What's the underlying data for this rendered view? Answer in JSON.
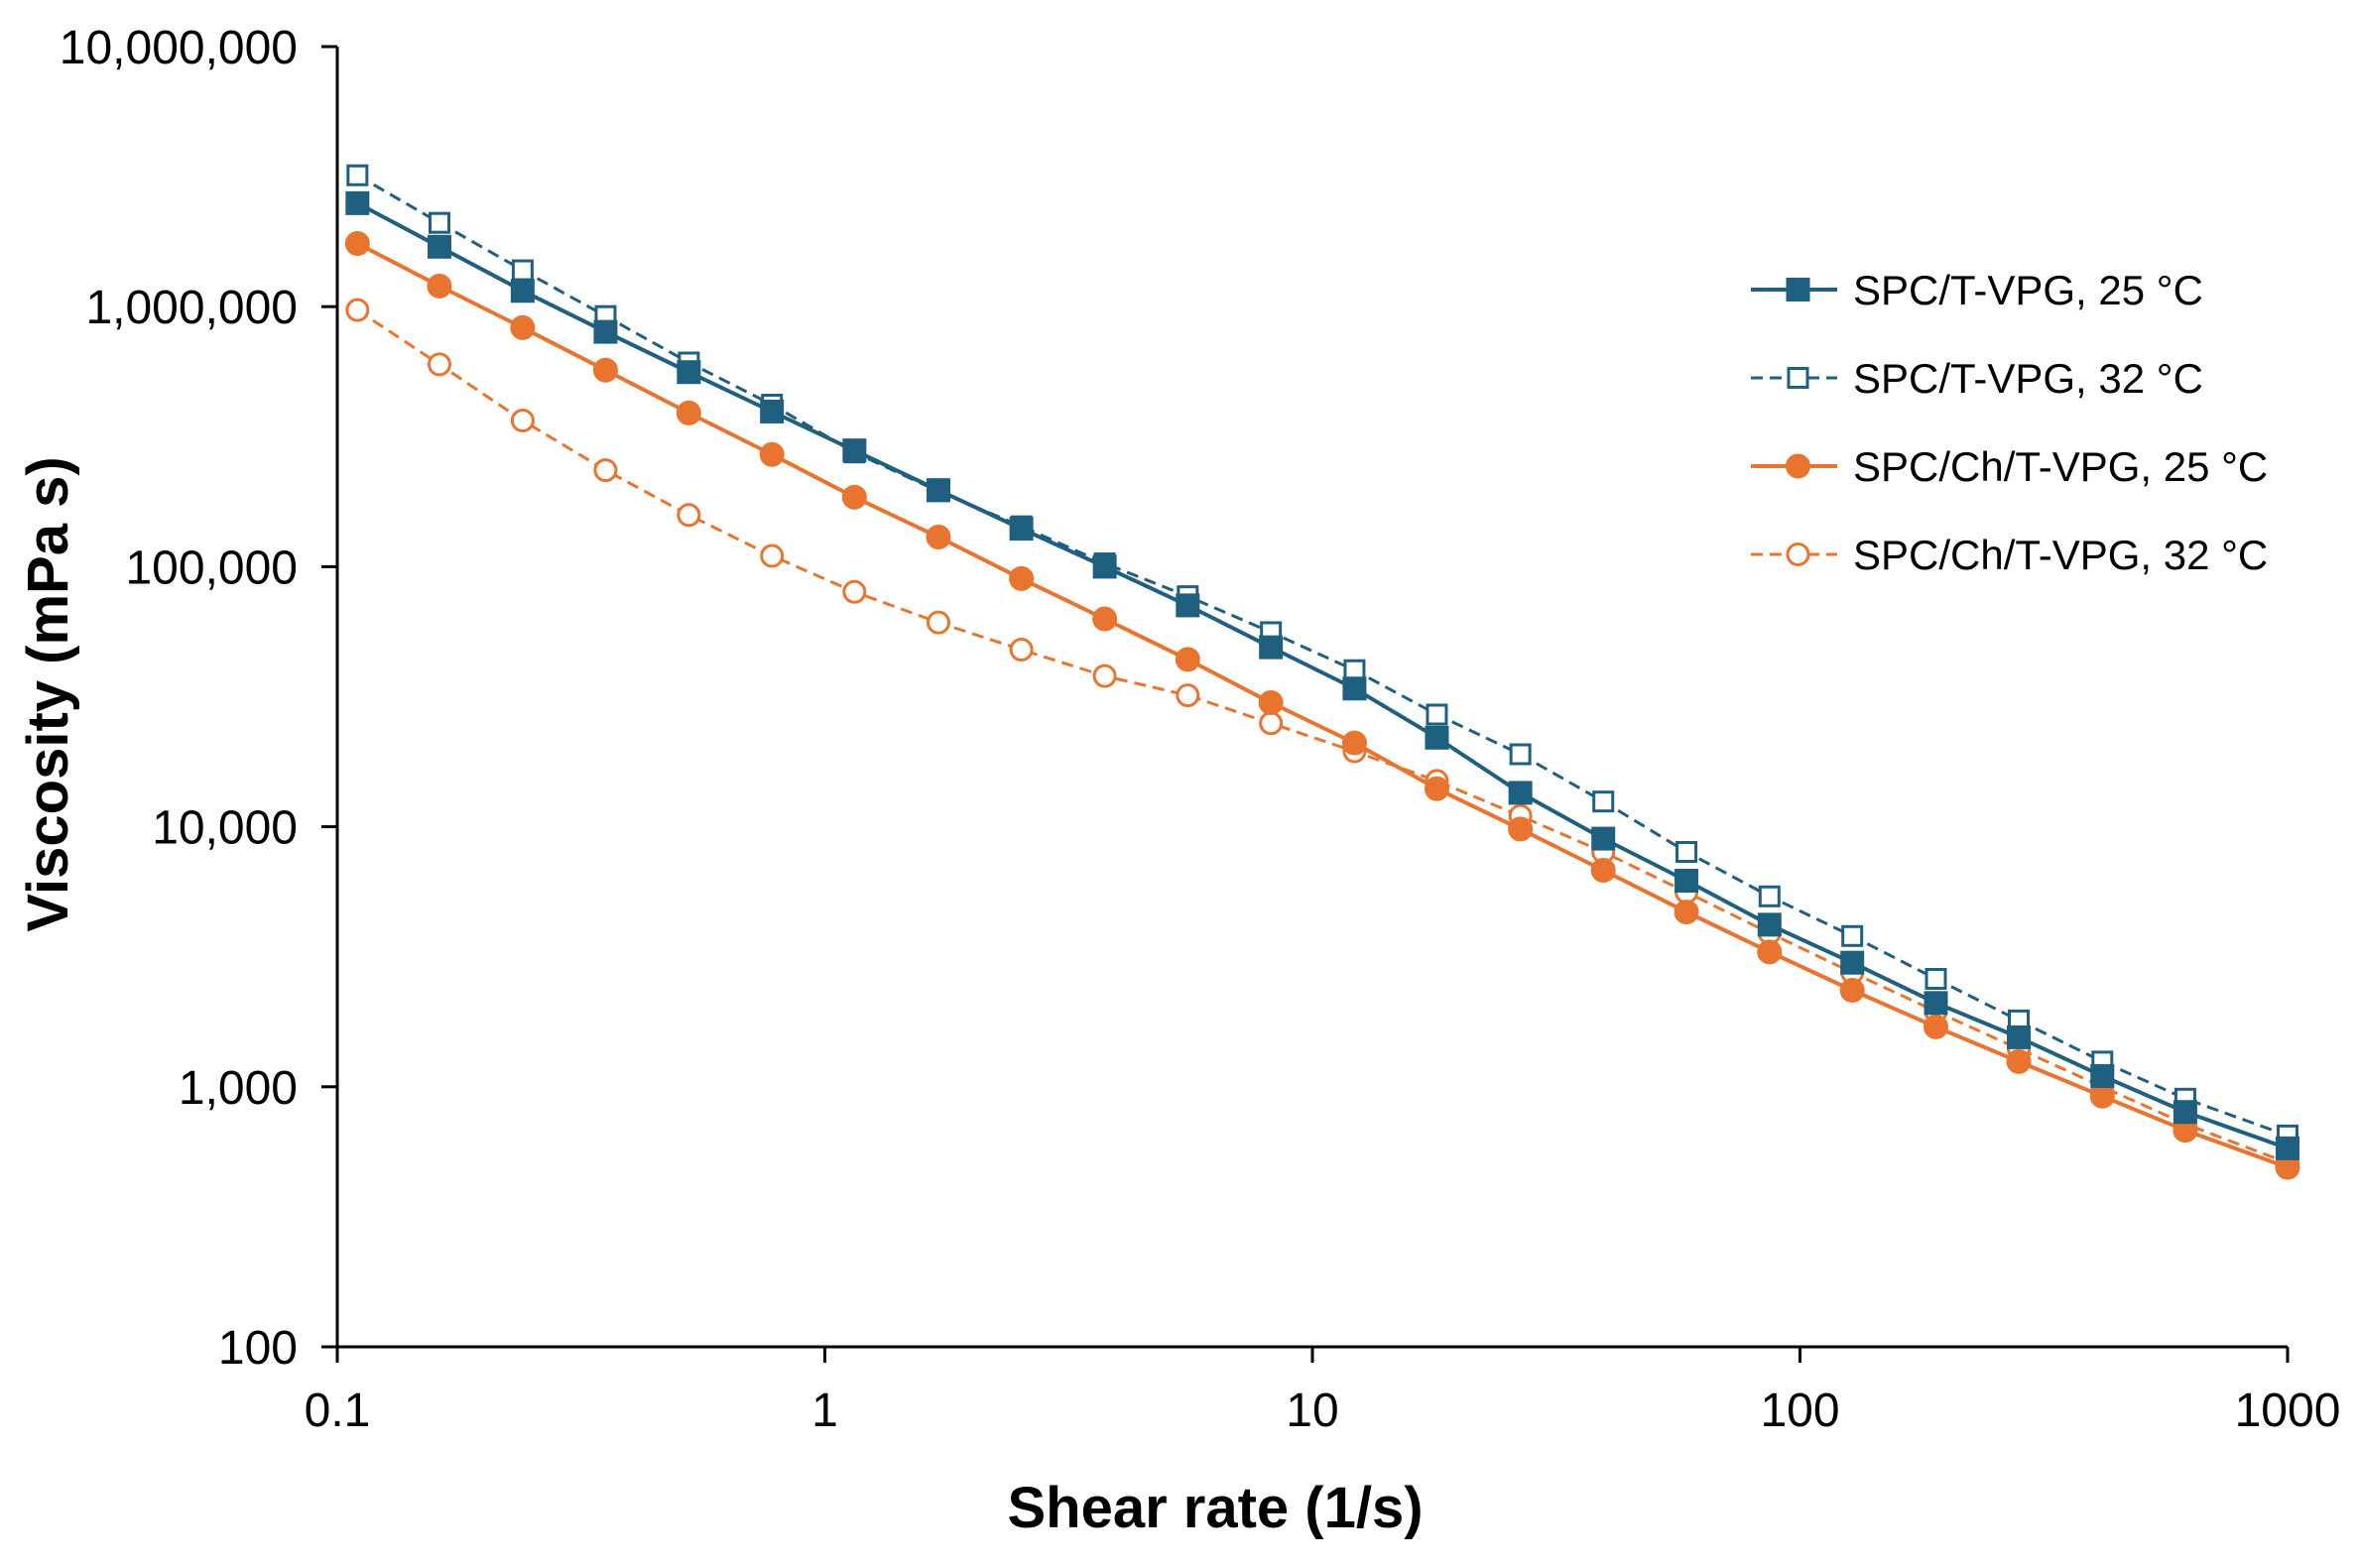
{
  "chart_data": {
    "type": "line",
    "title": "",
    "xlabel": "Shear rate (1/s)",
    "ylabel": "Viscosity (mPa s)",
    "xscale": "log",
    "yscale": "log",
    "xlim": [
      0.1,
      1000
    ],
    "ylim": [
      100,
      10000000
    ],
    "grid": false,
    "legend_position": "top-right",
    "x_ticks": [
      0.1,
      1,
      10,
      100,
      1000
    ],
    "x_tick_labels": [
      "0.1",
      "1",
      "10",
      "100",
      "1000"
    ],
    "y_ticks": [
      100,
      1000,
      10000,
      100000,
      1000000,
      10000000
    ],
    "y_tick_labels": [
      "100",
      "1,000",
      "10,000",
      "100,000",
      "1,000,000",
      "10,000,000"
    ],
    "x": [
      0.11,
      0.162,
      0.24,
      0.355,
      0.526,
      0.779,
      1.15,
      1.71,
      2.53,
      3.75,
      5.55,
      8.22,
      12.2,
      18.0,
      26.7,
      39.5,
      58.5,
      86.6,
      128,
      190,
      281,
      417,
      617,
      1000
    ],
    "series": [
      {
        "name": "SPC/T-VPG, 25 °C",
        "color": "#1f5f7f",
        "marker": "square-filled",
        "line_style": "solid",
        "values": [
          2500000,
          1700000,
          1150000,
          800000,
          560000,
          395000,
          280000,
          197000,
          140000,
          100000,
          71000,
          49000,
          34000,
          22000,
          13500,
          9000,
          6200,
          4200,
          3000,
          2100,
          1550,
          1100,
          800,
          580
        ]
      },
      {
        "name": "SPC/T-VPG, 32 °C",
        "color": "#1f5f7f",
        "marker": "square-open",
        "line_style": "dashed",
        "values": [
          3200000,
          2100000,
          1380000,
          920000,
          610000,
          420000,
          275000,
          195000,
          143000,
          103000,
          77000,
          56000,
          40000,
          27000,
          19000,
          12500,
          8000,
          5400,
          3800,
          2600,
          1800,
          1250,
          900,
          650
        ]
      },
      {
        "name": "SPC/Ch/T-VPG, 25 °C",
        "color": "#e8742f",
        "marker": "circle-filled",
        "line_style": "solid",
        "values": [
          1750000,
          1200000,
          830000,
          570000,
          390000,
          270000,
          185000,
          130000,
          90000,
          63000,
          44000,
          30000,
          21000,
          14000,
          9800,
          6800,
          4700,
          3300,
          2350,
          1700,
          1250,
          920,
          680,
          490
        ]
      },
      {
        "name": "SPC/Ch/T-VPG, 32 °C",
        "color": "#e8742f",
        "marker": "circle-open",
        "line_style": "dashed",
        "values": [
          970000,
          600000,
          365000,
          235000,
          158000,
          110000,
          80000,
          61000,
          48000,
          38000,
          32000,
          25000,
          19500,
          15000,
          11000,
          8000,
          5600,
          3900,
          2750,
          1950,
          1400,
          1000,
          720,
          510
        ]
      }
    ]
  }
}
